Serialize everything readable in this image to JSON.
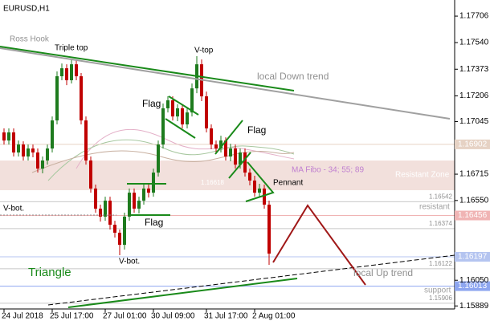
{
  "chart_data": {
    "type": "candlestick",
    "title": "EURUSD,H1",
    "open": [
      1.16977,
      1.16926,
      1.16977,
      1.16851,
      1.16901,
      1.16826,
      1.16876,
      1.16851,
      1.1675,
      1.16801,
      1.16876,
      1.17052,
      1.17329,
      1.17379,
      1.17304,
      1.17404,
      1.17329,
      1.17052,
      1.16801,
      1.16625,
      1.16499,
      1.16449,
      1.16549,
      1.16398,
      1.16348,
      1.16272,
      1.16449,
      1.16599,
      1.16499,
      1.16549,
      1.16625,
      1.16599,
      1.16725,
      1.16901,
      1.17128,
      1.17178,
      1.17077,
      1.17128,
      1.17027,
      1.17102,
      1.17253,
      1.17404,
      1.17203,
      1.17002,
      1.16901,
      1.16876,
      1.16926,
      1.16826,
      1.16876,
      1.16775,
      1.16851,
      1.16725,
      1.16675,
      1.16599,
      1.16625,
      1.16524
    ],
    "high": [
      1.17002,
      1.17002,
      1.17002,
      1.16926,
      1.16921,
      1.16901,
      1.16901,
      1.16876,
      1.16826,
      1.16901,
      1.17077,
      1.17359,
      1.17409,
      1.17404,
      1.17434,
      1.17434,
      1.17349,
      1.17077,
      1.16826,
      1.1665,
      1.16524,
      1.16574,
      1.16574,
      1.16423,
      1.16368,
      1.16474,
      1.16625,
      1.16625,
      1.16574,
      1.1665,
      1.1665,
      1.1675,
      1.16926,
      1.17158,
      1.17203,
      1.17203,
      1.17153,
      1.17153,
      1.17128,
      1.17284,
      1.17455,
      1.17434,
      1.17233,
      1.17027,
      1.16926,
      1.16956,
      1.16946,
      1.16906,
      1.16901,
      1.16876,
      1.16876,
      1.1675,
      1.16705,
      1.16655,
      1.1665,
      1.16549
    ],
    "low": [
      1.16901,
      1.16901,
      1.16826,
      1.16826,
      1.16801,
      1.16801,
      1.16821,
      1.16725,
      1.1672,
      1.16775,
      1.16851,
      1.17027,
      1.17304,
      1.17273,
      1.17284,
      1.17304,
      1.17027,
      1.16775,
      1.16599,
      1.16474,
      1.16418,
      1.16423,
      1.16368,
      1.16318,
      1.16207,
      1.16242,
      1.16423,
      1.16474,
      1.16469,
      1.16524,
      1.16569,
      1.16574,
      1.167,
      1.16876,
      1.17102,
      1.17052,
      1.17047,
      1.17002,
      1.17002,
      1.17077,
      1.17223,
      1.17173,
      1.16977,
      1.16871,
      1.16846,
      1.16851,
      1.16801,
      1.16796,
      1.1675,
      1.1675,
      1.167,
      1.16645,
      1.16574,
      1.16569,
      1.16499,
      1.16147
    ],
    "close": [
      1.16926,
      1.16977,
      1.16851,
      1.16901,
      1.16826,
      1.16876,
      1.16851,
      1.1675,
      1.16801,
      1.16876,
      1.17052,
      1.17329,
      1.17379,
      1.17304,
      1.17404,
      1.17329,
      1.17052,
      1.16801,
      1.16625,
      1.16499,
      1.16449,
      1.16549,
      1.16398,
      1.16348,
      1.16272,
      1.16449,
      1.16599,
      1.16499,
      1.16549,
      1.16625,
      1.16599,
      1.16725,
      1.16901,
      1.17128,
      1.17178,
      1.17077,
      1.17128,
      1.17027,
      1.17102,
      1.17253,
      1.17404,
      1.17203,
      1.17002,
      1.16901,
      1.16876,
      1.16926,
      1.16826,
      1.16876,
      1.16775,
      1.16851,
      1.16725,
      1.16675,
      1.16599,
      1.16625,
      1.16524,
      1.16217
    ],
    "up_color": "#1e7b1e",
    "down_color": "#c00000",
    "ylim": [
      1.1587,
      1.17807
    ],
    "yticks": [
      1.17706,
      {
        "value": 1.1754,
        "label": "1.17540"
      },
      1.17373,
      1.17206,
      1.17045,
      1.16715,
      {
        "value": 1.1655,
        "label": "1.16550"
      },
      {
        "value": 1.1605,
        "label": "1.16050"
      },
      1.15889
    ],
    "xticks": [
      {
        "value": 0,
        "label": "24 Jul 2018"
      },
      {
        "value": 10,
        "label": "25 Jul 17:00"
      },
      {
        "value": 21,
        "label": "27 Jul 01:00"
      },
      {
        "value": 31,
        "label": "30 Jul 09:00"
      },
      {
        "value": 42,
        "label": "31 Jul 17:00"
      },
      {
        "value": 52,
        "label": "2 Aug 01:00"
      }
    ],
    "levels": [
      {
        "value": 1.16542,
        "color": "#c8c8c8"
      },
      {
        "value": 1.16374,
        "color": "#c8c8c8"
      },
      {
        "value": 1.16122,
        "color": "#c8c8c8"
      },
      {
        "value": 1.15906,
        "color": "#c8c8c8"
      }
    ],
    "price_tags": [
      {
        "value": 1.16902,
        "color": "#e6d2c4"
      },
      {
        "value": 1.16456,
        "color": "#f0b4b4"
      },
      {
        "value": 1.16197,
        "color": "#b4c4f0"
      },
      {
        "value": 1.16013,
        "color": "#8ea6f0"
      }
    ],
    "annotations": {
      "ross_hook": "Ross Hook",
      "triple_top": "Triple top",
      "v_top": "V-top",
      "down_trend": "local Down trend",
      "flag1": "Flag",
      "flag2": "Flag",
      "flag3": "Flag",
      "pennant": "Pennant",
      "ma_fibo": "MA Fibo - 34; 55; 89",
      "zone": "Resistant Zone",
      "resistant": "resistant",
      "support": "support",
      "v_bot1": "V-bot.",
      "v_bot2": "V-bot.",
      "triangle": "Triangle",
      "up_trend": "local Up trend",
      "small_level": "1.16618"
    }
  }
}
